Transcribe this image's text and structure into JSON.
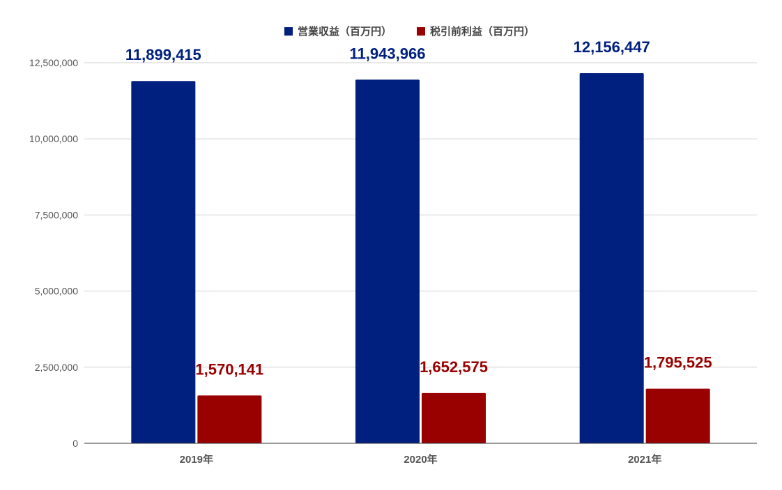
{
  "chart_data": {
    "type": "bar",
    "categories": [
      "2019年",
      "2020年",
      "2021年"
    ],
    "series": [
      {
        "name": "営業収益（百万円）",
        "values": [
          11899415,
          11943966,
          12156447
        ],
        "color": "#002080",
        "labels": [
          "11,899,415",
          "11,943,966",
          "12,156,447"
        ]
      },
      {
        "name": "税引前利益（百万円）",
        "values": [
          1570141,
          1652575,
          1795525
        ],
        "color": "#990000",
        "labels": [
          "1,570,141",
          "1,652,575",
          "1,795,525"
        ]
      }
    ],
    "yticks": [
      {
        "value": 0,
        "label": "0"
      },
      {
        "value": 2500000,
        "label": "2,500,000"
      },
      {
        "value": 5000000,
        "label": "5,000,000"
      },
      {
        "value": 7500000,
        "label": "7,500,000"
      },
      {
        "value": 10000000,
        "label": "10,000,000"
      },
      {
        "value": 12500000,
        "label": "12,500,000"
      }
    ],
    "ylim": [
      0,
      12500000
    ],
    "grid": true,
    "legend_position": "top-center",
    "title": "",
    "xlabel": "",
    "ylabel": ""
  }
}
